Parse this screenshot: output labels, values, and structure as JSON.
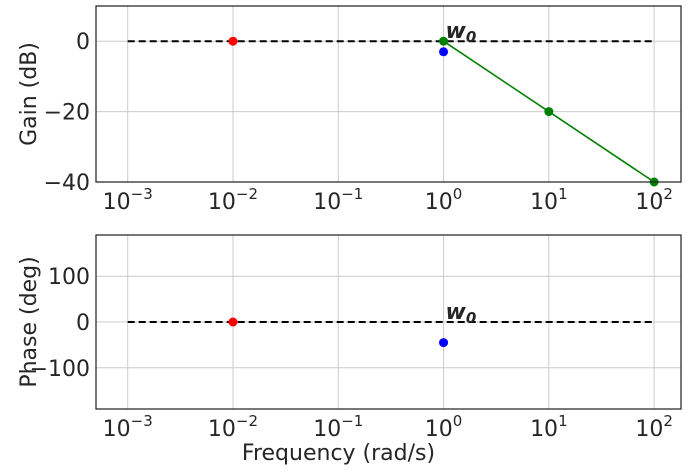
{
  "chart_data": [
    {
      "type": "line",
      "x_scale": "log",
      "xlim": [
        0.0005,
        180
      ],
      "ylim": [
        -40,
        10
      ],
      "x_ticks": [
        0.001,
        0.01,
        0.1,
        1,
        10,
        100
      ],
      "x_tick_labels": [
        {
          "base": "10",
          "exp": "−3"
        },
        {
          "base": "10",
          "exp": "−2"
        },
        {
          "base": "10",
          "exp": "−1"
        },
        {
          "base": "10",
          "exp": "0"
        },
        {
          "base": "10",
          "exp": "1"
        },
        {
          "base": "10",
          "exp": "2"
        }
      ],
      "y_ticks": [
        0,
        -20,
        -40
      ],
      "y_tick_labels": [
        "0",
        "−20",
        "−40"
      ],
      "xlabel": "",
      "ylabel": "Gain (dB)",
      "grid": true,
      "annotation": {
        "text": "w",
        "sub": "0",
        "x": 1,
        "y": 0
      },
      "series": [
        {
          "style": "dashed",
          "color": "#000000",
          "x": [
            0.001,
            100
          ],
          "y": [
            0,
            0
          ]
        },
        {
          "style": "line-markers",
          "color": "#008000",
          "x": [
            1,
            10,
            100
          ],
          "y": [
            0,
            -20,
            -40
          ]
        },
        {
          "style": "markers",
          "color": "#ff0000",
          "x": [
            0.01
          ],
          "y": [
            0
          ]
        },
        {
          "style": "markers",
          "color": "#0000ff",
          "x": [
            1
          ],
          "y": [
            -3
          ]
        }
      ]
    },
    {
      "type": "line",
      "x_scale": "log",
      "xlim": [
        0.0005,
        180
      ],
      "ylim": [
        -190,
        190
      ],
      "x_ticks": [
        0.001,
        0.01,
        0.1,
        1,
        10,
        100
      ],
      "x_tick_labels": [
        {
          "base": "10",
          "exp": "−3"
        },
        {
          "base": "10",
          "exp": "−2"
        },
        {
          "base": "10",
          "exp": "−1"
        },
        {
          "base": "10",
          "exp": "0"
        },
        {
          "base": "10",
          "exp": "1"
        },
        {
          "base": "10",
          "exp": "2"
        }
      ],
      "y_ticks": [
        100,
        0,
        -100
      ],
      "y_tick_labels": [
        "100",
        "0",
        "−100"
      ],
      "xlabel": "Frequency (rad/s)",
      "ylabel": "Phase (deg)",
      "grid": true,
      "annotation": {
        "text": "w",
        "sub": "0",
        "x": 1,
        "y": 0
      },
      "series": [
        {
          "style": "dashed",
          "color": "#000000",
          "x": [
            0.001,
            100
          ],
          "y": [
            0,
            0
          ]
        },
        {
          "style": "markers",
          "color": "#ff0000",
          "x": [
            0.01
          ],
          "y": [
            0
          ]
        },
        {
          "style": "markers",
          "color": "#0000ff",
          "x": [
            1
          ],
          "y": [
            -45
          ]
        }
      ]
    }
  ]
}
